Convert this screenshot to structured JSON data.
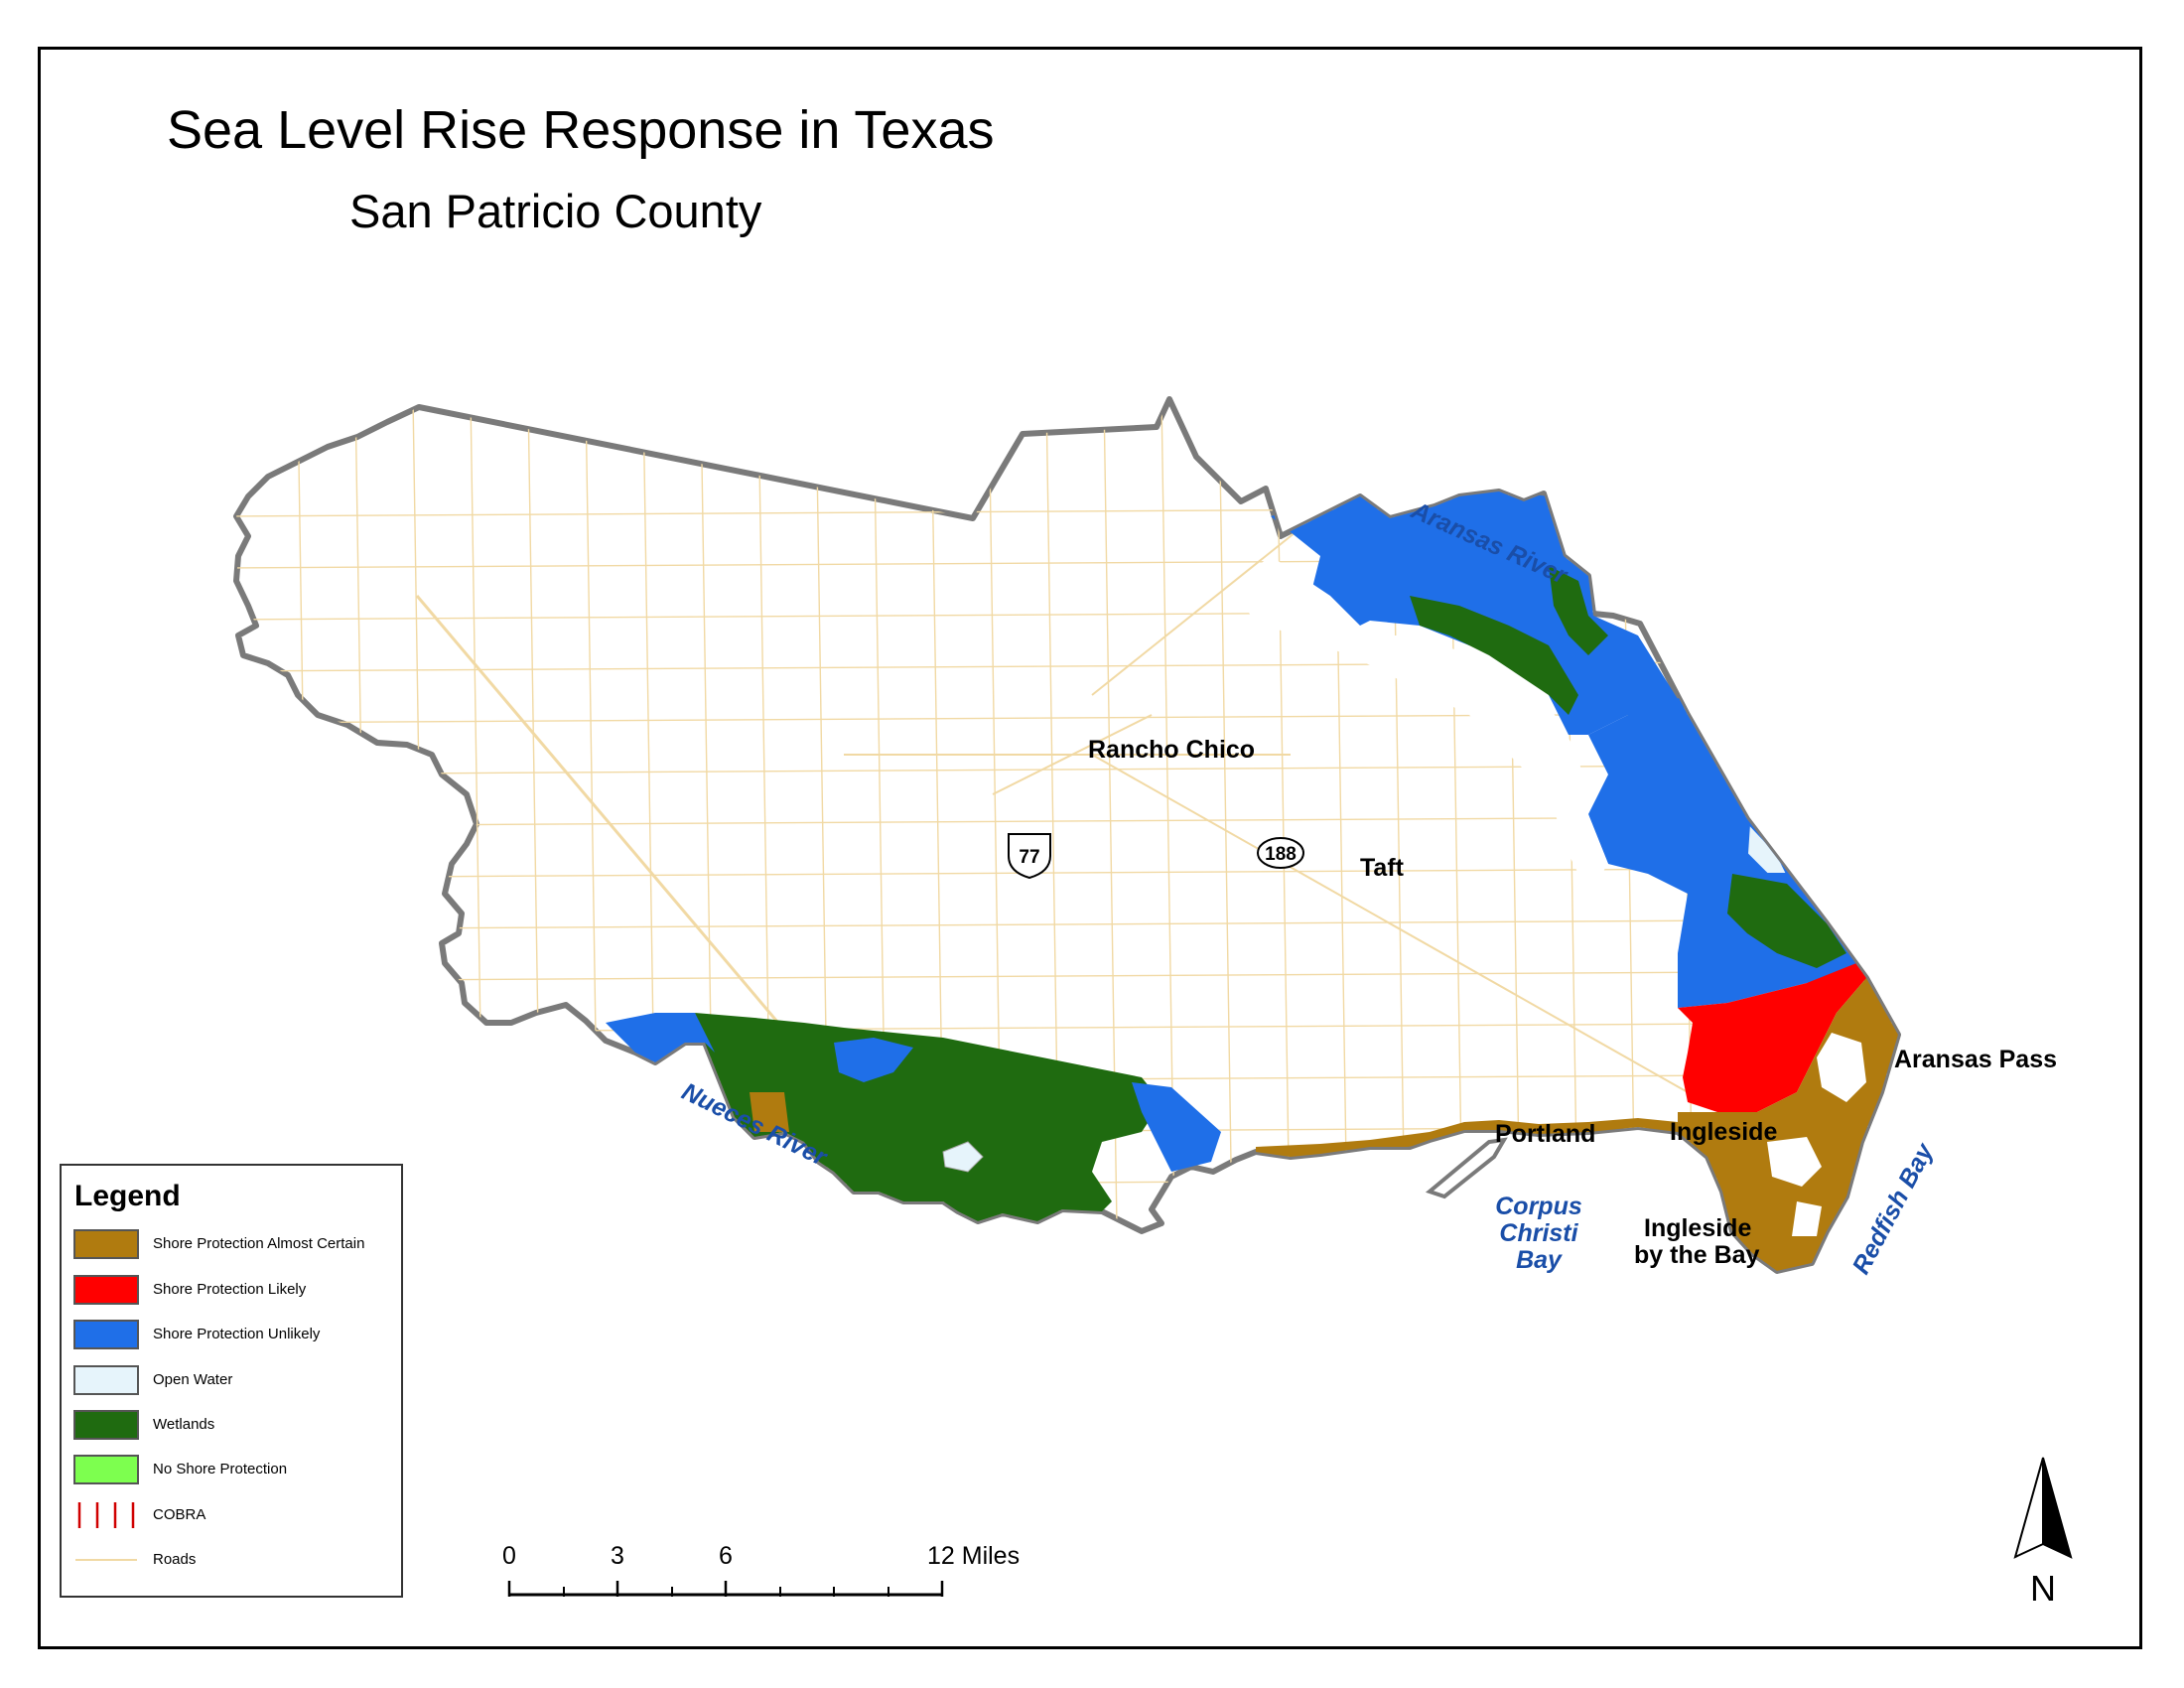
{
  "title": "Sea Level Rise Response in Texas",
  "subtitle": "San Patricio County",
  "places": {
    "rancho_chico": "Rancho Chico",
    "taft": "Taft",
    "portland": "Portland",
    "ingleside": "Ingleside",
    "ingleside_bay_1": "Ingleside",
    "ingleside_bay_2": "by the Bay",
    "aransas_pass": "Aransas Pass"
  },
  "water_labels": {
    "aransas_river": "Aransas River",
    "nueces_river": "Nueces River",
    "corpus_1": "Corpus",
    "corpus_2": "Christi",
    "corpus_3": "Bay",
    "redfish_bay": "Redfish Bay"
  },
  "highways": {
    "us77": "77",
    "sh188": "188"
  },
  "legend": {
    "title": "Legend",
    "items": [
      {
        "label": "Shore Protection Almost Certain",
        "color": "#b07b0f",
        "kind": "fill"
      },
      {
        "label": "Shore Protection Likely",
        "color": "#ff0000",
        "kind": "fill"
      },
      {
        "label": "Shore Protection Unlikely",
        "color": "#1f6fe8",
        "kind": "fill"
      },
      {
        "label": "Open Water",
        "color": "#e6f4fb",
        "kind": "fill"
      },
      {
        "label": "Wetlands",
        "color": "#1f6b10",
        "kind": "fill"
      },
      {
        "label": "No Shore Protection",
        "color": "#7dff4f",
        "kind": "fill"
      },
      {
        "label": "COBRA",
        "color": "#d00000",
        "kind": "hatch"
      },
      {
        "label": "Roads",
        "color": "#f1d9a4",
        "kind": "line"
      }
    ]
  },
  "scale_bar": {
    "ticks": [
      "0",
      "3",
      "6",
      "12 Miles"
    ]
  },
  "north_arrow": {
    "label": "N"
  },
  "colors": {
    "border": "#7a7a7a",
    "roads": "#f1d9a4",
    "almost_certain": "#b07b0f",
    "likely": "#ff0000",
    "unlikely": "#1f6fe8",
    "wetlands": "#1f6b10",
    "open_water": "#e6f4fb"
  }
}
